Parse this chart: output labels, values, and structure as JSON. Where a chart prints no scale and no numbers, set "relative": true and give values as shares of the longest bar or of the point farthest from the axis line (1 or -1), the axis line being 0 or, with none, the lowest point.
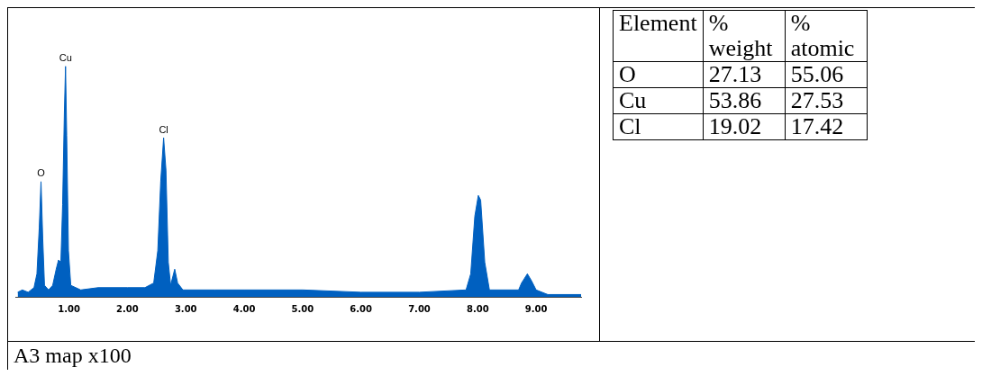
{
  "chart_data": [
    {
      "type": "area",
      "color": "#0060c0",
      "relative": true,
      "x": [
        0.12,
        0.2,
        0.3,
        0.4,
        0.45,
        0.49,
        0.52,
        0.55,
        0.58,
        0.65,
        0.72,
        0.78,
        0.82,
        0.86,
        0.89,
        0.92,
        0.94,
        0.96,
        0.99,
        1.03,
        1.2,
        1.5,
        2.0,
        2.3,
        2.45,
        2.52,
        2.57,
        2.62,
        2.66,
        2.7,
        2.74,
        2.81,
        2.86,
        2.95,
        3.5,
        4.0,
        5.0,
        6.0,
        7.0,
        7.8,
        7.88,
        7.95,
        8.01,
        8.05,
        8.12,
        8.2,
        8.7,
        8.75,
        8.85,
        8.92,
        9.0,
        9.2,
        9.77
      ],
      "values": [
        0.02,
        0.03,
        0.02,
        0.04,
        0.1,
        0.3,
        0.5,
        0.25,
        0.05,
        0.03,
        0.05,
        0.12,
        0.16,
        0.15,
        0.4,
        0.8,
        1,
        0.7,
        0.2,
        0.05,
        0.03,
        0.04,
        0.04,
        0.04,
        0.06,
        0.2,
        0.5,
        0.69,
        0.55,
        0.15,
        0.05,
        0.12,
        0.06,
        0.03,
        0.03,
        0.03,
        0.03,
        0.02,
        0.02,
        0.03,
        0.1,
        0.35,
        0.44,
        0.42,
        0.15,
        0.03,
        0.03,
        0.06,
        0.1,
        0.07,
        0.03,
        0.01,
        0.01
      ],
      "xlim": [
        0.08,
        9.77
      ],
      "xticks": [
        {
          "value": 1,
          "label": "1.00"
        },
        {
          "value": 2,
          "label": "2.00"
        },
        {
          "value": 3,
          "label": "3.00"
        },
        {
          "value": 4,
          "label": "4.00"
        },
        {
          "value": 5,
          "label": "5.00"
        },
        {
          "value": 6,
          "label": "6.00"
        },
        {
          "value": 7,
          "label": "7.00"
        },
        {
          "value": 8,
          "label": "8.00"
        },
        {
          "value": 9,
          "label": "9.00"
        }
      ],
      "tick_labels": "x",
      "annotations": [
        {
          "text": "O",
          "x": 0.52,
          "y": 0.5
        },
        {
          "text": "Cu",
          "x": 0.94,
          "y": 1
        },
        {
          "text": "Cl",
          "x": 2.62,
          "y": 0.69
        },
        "A3 map x100"
      ]
    },
    {
      "type": "other",
      "legend_title": "Element",
      "categories": [
        "O",
        "Cu",
        "Cl"
      ],
      "series": [
        {
          "name": "% weight",
          "values": [
            27.13,
            53.86,
            19.02
          ]
        },
        {
          "name": "% atomic",
          "values": [
            55.06,
            27.53,
            17.42
          ]
        }
      ],
      "data_labels": true
    }
  ]
}
